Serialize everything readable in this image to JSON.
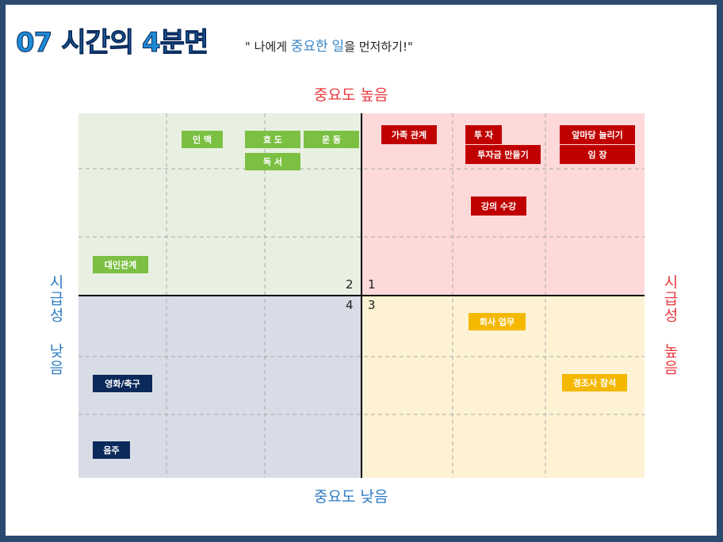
{
  "header": {
    "number": "07",
    "title": "시간의 4분면",
    "subtitle": [
      "\" 나에게 ",
      "중요한",
      " ",
      "일",
      "을 먼저하기!\""
    ]
  },
  "axes": {
    "top": "중요도 높음",
    "bottom": "중요도 낮음",
    "left": "시급성 낮음",
    "right": "시급성 높음"
  },
  "quadrants": [
    "1",
    "2",
    "3",
    "4"
  ],
  "tags": [
    {
      "label": "인 맥"
    },
    {
      "label": "효 도"
    },
    {
      "label": "운 동"
    },
    {
      "label": "독 서"
    },
    {
      "label": "대인관계"
    },
    {
      "label": "가족 관계"
    },
    {
      "label": "투 자"
    },
    {
      "label": "투자금 만들기"
    },
    {
      "label": "앞마당 늘리기"
    },
    {
      "label": "임 장"
    },
    {
      "label": "강의 수강"
    },
    {
      "label": "회사 업무"
    },
    {
      "label": "경조사 참석"
    },
    {
      "label": "영화/축구"
    },
    {
      "label": "음주"
    }
  ]
}
